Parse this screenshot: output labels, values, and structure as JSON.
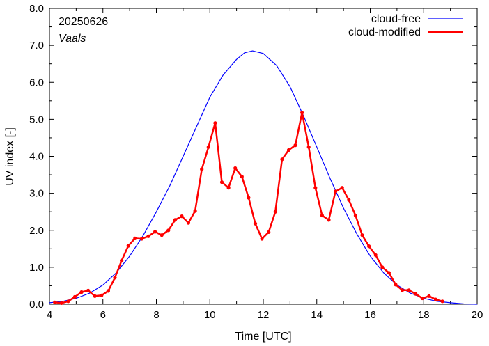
{
  "chart_data": {
    "type": "line",
    "annotations": {
      "date": "20250626",
      "station": "Vaals"
    },
    "xlabel": "Time  [UTC]",
    "ylabel": "UV index  [-]",
    "xlim": [
      4,
      20
    ],
    "ylim": [
      0,
      8
    ],
    "x_ticks": [
      4,
      6,
      8,
      10,
      12,
      14,
      16,
      18,
      20
    ],
    "x_tick_labels": [
      "4",
      "6",
      "8",
      "10",
      "12",
      "14",
      "16",
      "18",
      "20"
    ],
    "y_ticks": [
      0,
      1,
      2,
      3,
      4,
      5,
      6,
      7,
      8
    ],
    "y_tick_labels": [
      "0.0",
      "1.0",
      "2.0",
      "3.0",
      "4.0",
      "5.0",
      "6.0",
      "7.0",
      "8.0"
    ],
    "grid": false,
    "legend_position": "top-right",
    "series": [
      {
        "name": "cloud-free",
        "color": "#0000ff",
        "style": "line",
        "x": [
          4.0,
          4.5,
          5.0,
          5.5,
          6.0,
          6.5,
          7.0,
          7.5,
          8.0,
          8.5,
          9.0,
          9.5,
          10.0,
          10.5,
          11.0,
          11.3,
          11.6,
          12.0,
          12.5,
          13.0,
          13.5,
          14.0,
          14.5,
          15.0,
          15.5,
          16.0,
          16.5,
          17.0,
          17.5,
          18.0,
          18.5,
          19.0,
          19.5,
          20.0
        ],
        "y": [
          0.04,
          0.08,
          0.16,
          0.3,
          0.52,
          0.85,
          1.3,
          1.85,
          2.5,
          3.2,
          4.0,
          4.8,
          5.6,
          6.2,
          6.62,
          6.8,
          6.85,
          6.78,
          6.45,
          5.88,
          5.1,
          4.25,
          3.4,
          2.6,
          1.9,
          1.3,
          0.85,
          0.52,
          0.3,
          0.16,
          0.08,
          0.04,
          0.01,
          0.0
        ]
      },
      {
        "name": "cloud-modified",
        "color": "#ff0000",
        "style": "line-marker",
        "x": [
          4.2,
          4.45,
          4.7,
          4.95,
          5.2,
          5.45,
          5.7,
          5.95,
          6.2,
          6.45,
          6.7,
          6.95,
          7.2,
          7.45,
          7.7,
          7.95,
          8.2,
          8.45,
          8.7,
          8.95,
          9.2,
          9.45,
          9.7,
          9.95,
          10.2,
          10.45,
          10.7,
          10.95,
          11.2,
          11.45,
          11.7,
          11.95,
          12.2,
          12.45,
          12.7,
          12.95,
          13.2,
          13.45,
          13.7,
          13.95,
          14.2,
          14.45,
          14.7,
          14.95,
          15.2,
          15.45,
          15.7,
          15.95,
          16.2,
          16.45,
          16.7,
          16.95,
          17.2,
          17.45,
          17.7,
          17.95,
          18.2,
          18.45,
          18.7
        ],
        "y": [
          0.05,
          0.03,
          0.08,
          0.2,
          0.33,
          0.37,
          0.22,
          0.24,
          0.36,
          0.72,
          1.18,
          1.58,
          1.78,
          1.77,
          1.84,
          1.96,
          1.87,
          2.0,
          2.28,
          2.38,
          2.2,
          2.52,
          3.65,
          4.25,
          4.9,
          3.3,
          3.15,
          3.68,
          3.45,
          2.88,
          2.18,
          1.77,
          1.95,
          2.5,
          3.92,
          4.17,
          4.3,
          5.18,
          4.25,
          3.15,
          2.4,
          2.28,
          3.05,
          3.15,
          2.82,
          2.4,
          1.87,
          1.57,
          1.33,
          1.0,
          0.85,
          0.53,
          0.38,
          0.38,
          0.28,
          0.16,
          0.22,
          0.13,
          0.08
        ]
      }
    ]
  }
}
